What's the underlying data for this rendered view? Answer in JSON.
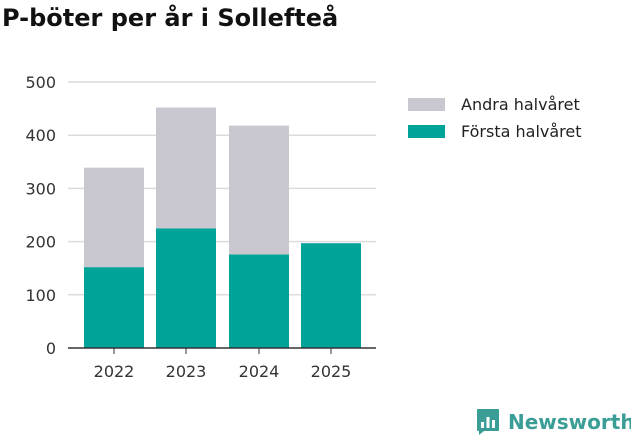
{
  "colors": {
    "andra": "#c9c8d1",
    "forsta": "#00a398",
    "brand": "#3a9e96"
  },
  "chart_data": {
    "type": "bar",
    "stacked": true,
    "title": "P-böter per år i Sollefteå",
    "categories": [
      "2022",
      "2023",
      "2024",
      "2025"
    ],
    "series": [
      {
        "name": "Första halvåret",
        "values": [
          152,
          225,
          176,
          197
        ]
      },
      {
        "name": "Andra halvåret",
        "values": [
          187,
          227,
          242,
          0
        ]
      }
    ],
    "legend": [
      "Andra halvåret",
      "Första halvåret"
    ],
    "yticks": [
      0,
      100,
      200,
      300,
      400,
      500
    ],
    "ylim": [
      0,
      500
    ],
    "xlabel": "",
    "ylabel": "",
    "grid": true,
    "legend_position": "right"
  },
  "brand": {
    "name": "Newsworthy",
    "icon": "newsworthy-logo-icon"
  }
}
